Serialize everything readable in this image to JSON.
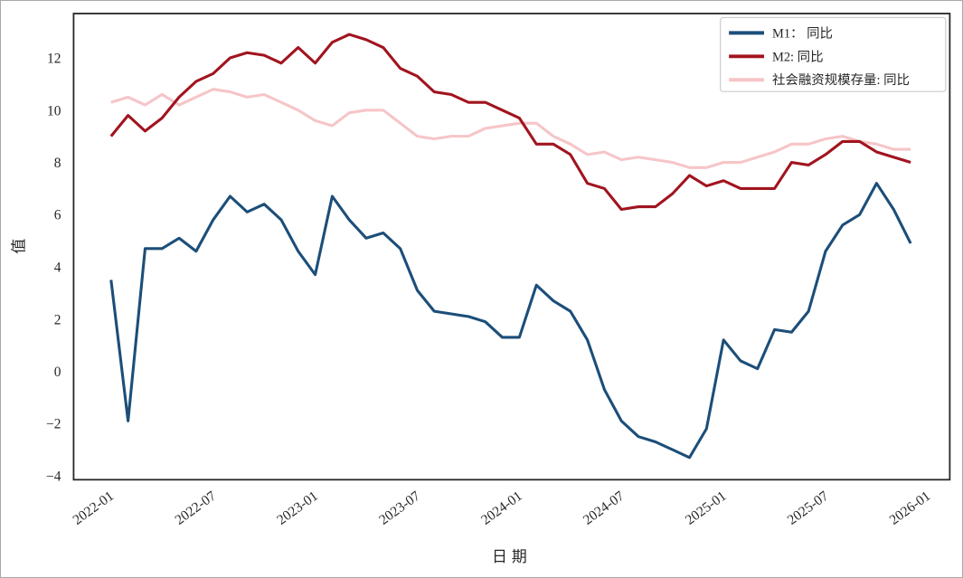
{
  "chart_data": {
    "type": "line",
    "title": "",
    "xlabel": "日期",
    "ylabel": "值",
    "x": [
      "2022-01",
      "2022-02",
      "2022-03",
      "2022-04",
      "2022-05",
      "2022-06",
      "2022-07",
      "2022-08",
      "2022-09",
      "2022-10",
      "2022-11",
      "2022-12",
      "2023-01",
      "2023-02",
      "2023-03",
      "2023-04",
      "2023-05",
      "2023-06",
      "2023-07",
      "2023-08",
      "2023-09",
      "2023-10",
      "2023-11",
      "2023-12",
      "2024-01",
      "2024-02",
      "2024-03",
      "2024-04",
      "2024-05",
      "2024-06",
      "2024-07",
      "2024-08",
      "2024-09",
      "2024-10",
      "2024-11",
      "2024-12",
      "2025-01",
      "2025-02",
      "2025-03",
      "2025-04",
      "2025-05",
      "2025-06",
      "2025-07",
      "2025-08",
      "2025-09",
      "2025-10",
      "2025-11",
      "2025-12"
    ],
    "series": [
      {
        "name": "M1： 同比",
        "color": "#1c4e79",
        "values": [
          3.5,
          -1.9,
          4.7,
          4.7,
          5.1,
          4.6,
          5.8,
          6.7,
          6.1,
          6.4,
          5.8,
          4.6,
          3.7,
          6.7,
          5.8,
          5.1,
          5.3,
          4.7,
          3.1,
          2.3,
          2.2,
          2.1,
          1.9,
          1.3,
          1.3,
          3.3,
          2.7,
          2.3,
          1.2,
          -0.7,
          -1.9,
          -2.5,
          -2.7,
          -3.0,
          -3.3,
          -2.2,
          1.2,
          0.4,
          0.1,
          1.6,
          1.5,
          2.3,
          4.6,
          5.6,
          6.0,
          7.2,
          6.2,
          4.9
        ]
      },
      {
        "name": "M2: 同比",
        "color": "#a1141f",
        "values": [
          9.0,
          9.8,
          9.2,
          9.7,
          10.5,
          11.1,
          11.4,
          12.0,
          12.2,
          12.1,
          11.8,
          12.4,
          11.8,
          12.6,
          12.9,
          12.7,
          12.4,
          11.6,
          11.3,
          10.7,
          10.6,
          10.3,
          10.3,
          10.0,
          9.7,
          8.7,
          8.7,
          8.3,
          7.2,
          7.0,
          6.2,
          6.3,
          6.3,
          6.8,
          7.5,
          7.1,
          7.3,
          7.0,
          7.0,
          7.0,
          8.0,
          7.9,
          8.3,
          8.8,
          8.8,
          8.4,
          8.2,
          8.0
        ]
      },
      {
        "name": "社会融资规模存量: 同比",
        "color": "#f6c5c8",
        "values": [
          10.3,
          10.5,
          10.2,
          10.6,
          10.2,
          10.5,
          10.8,
          10.7,
          10.5,
          10.6,
          10.3,
          10.0,
          9.6,
          9.4,
          9.9,
          10.0,
          10.0,
          9.5,
          9.0,
          8.9,
          9.0,
          9.0,
          9.3,
          9.4,
          9.5,
          9.5,
          9.0,
          8.7,
          8.3,
          8.4,
          8.1,
          8.2,
          8.1,
          8.0,
          7.8,
          7.8,
          8.0,
          8.0,
          8.2,
          8.4,
          8.7,
          8.7,
          8.9,
          9.0,
          8.8,
          8.7,
          8.5,
          8.5
        ]
      }
    ],
    "xticks": [
      "2022-01",
      "2022-07",
      "2023-01",
      "2023-07",
      "2024-01",
      "2024-07",
      "2025-01",
      "2025-07",
      "2026-01"
    ],
    "yticks": [
      -4,
      -2,
      0,
      2,
      4,
      6,
      8,
      10,
      12
    ],
    "ylim": [
      -4.15,
      13.7
    ],
    "xlim_months": [
      -2.2,
      49.3
    ],
    "x_start": "2022-01",
    "legend_position": "upper right",
    "grid": false
  }
}
